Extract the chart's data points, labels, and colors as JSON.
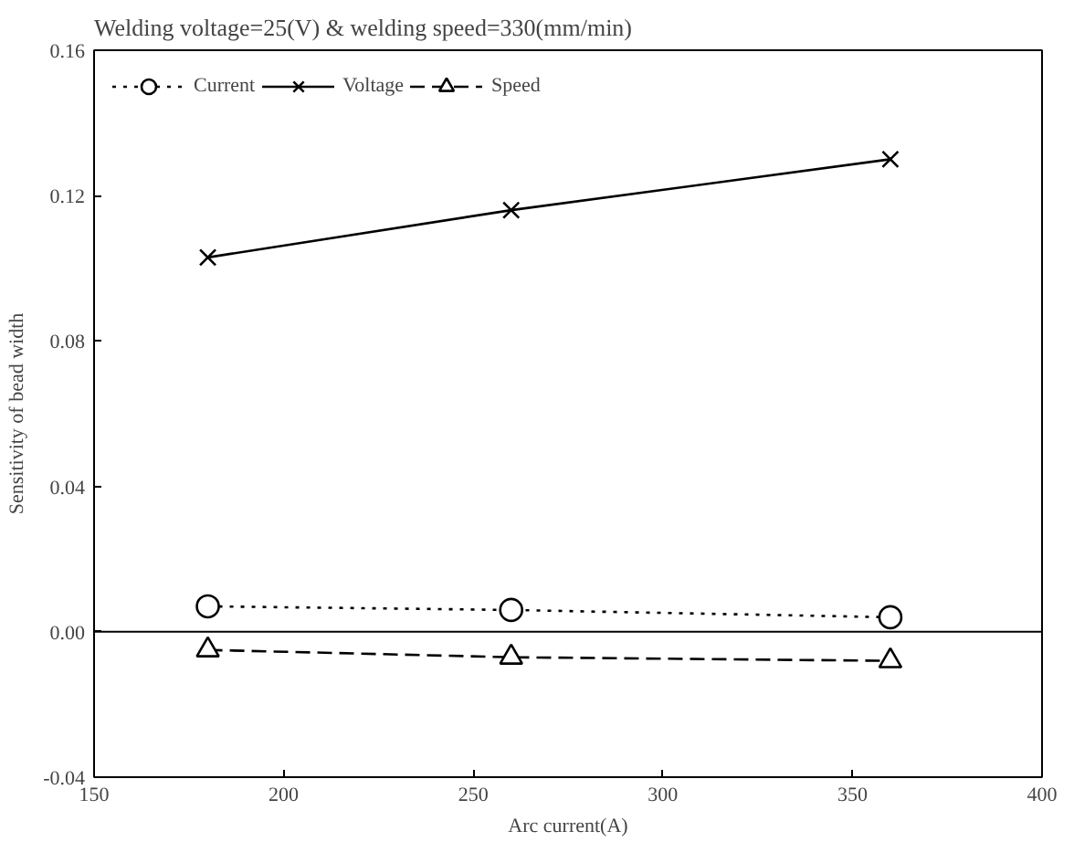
{
  "chart_data": {
    "type": "line",
    "title": "Welding voltage=25(V) & welding speed=330(mm/min)",
    "xlabel": "Arc current(A)",
    "ylabel": "Sensitivity of bead width",
    "x": [
      180,
      260,
      360
    ],
    "series": [
      {
        "name": "Current",
        "color": "#000000",
        "values": [
          0.007,
          0.006,
          0.004
        ],
        "marker": "circle",
        "line_style": "dotted"
      },
      {
        "name": "Voltage",
        "color": "#000000",
        "values": [
          0.103,
          0.116,
          0.13
        ],
        "marker": "cross",
        "line_style": "solid"
      },
      {
        "name": "Speed",
        "color": "#000000",
        "values": [
          -0.005,
          -0.007,
          -0.008
        ],
        "marker": "triangle",
        "line_style": "dashed"
      }
    ],
    "xlim": [
      150,
      400
    ],
    "xticks": [
      150,
      200,
      250,
      300,
      350,
      400
    ],
    "ylim": [
      -0.04,
      0.16
    ],
    "yticks": [
      {
        "value": -0.04,
        "label": "-0.04"
      },
      {
        "value": 0,
        "label": "0.00"
      },
      {
        "value": 0.04,
        "label": "0.04"
      },
      {
        "value": 0.08,
        "label": "0.08"
      },
      {
        "value": 0.12,
        "label": "0.12"
      },
      {
        "value": 0.16,
        "label": "0.16"
      }
    ],
    "ref_lines": [
      {
        "axis": "y",
        "value": 0,
        "label": null,
        "color": "#000000"
      }
    ],
    "grid": false,
    "legend": "top left"
  }
}
